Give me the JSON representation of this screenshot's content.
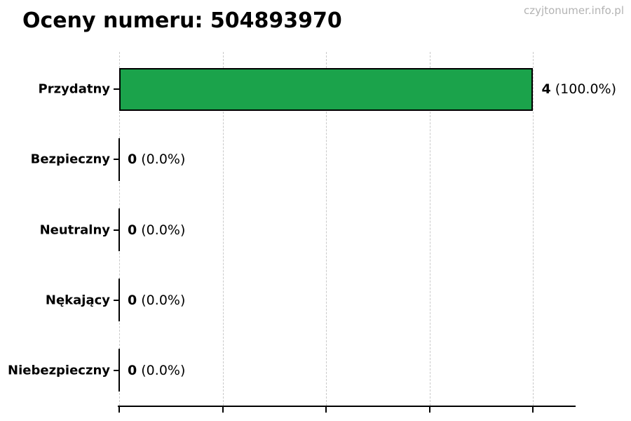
{
  "title": "Oceny numeru: 504893970",
  "watermark": "czyjtonumer.info.pl",
  "colors": {
    "background": "#ffffff",
    "text": "#000000",
    "bar_fill": "#1ba34b",
    "bar_edge": "#000000",
    "grid": "#c9c9c9",
    "axis": "#000000",
    "watermark": "#b3b3b3"
  },
  "chart_data": {
    "type": "bar",
    "orientation": "horizontal",
    "title": "Oceny numeru: 504893970",
    "categories": [
      "Przydatny",
      "Bezpieczny",
      "Neutralny",
      "Nękający",
      "Niebezpieczny"
    ],
    "values": [
      4,
      0,
      0,
      0,
      0
    ],
    "percentages": [
      100.0,
      0.0,
      0.0,
      0.0,
      0.0
    ],
    "value_labels": [
      {
        "num": "4",
        "pct": "(100.0%)"
      },
      {
        "num": "0",
        "pct": "(0.0%)"
      },
      {
        "num": "0",
        "pct": "(0.0%)"
      },
      {
        "num": "0",
        "pct": "(0.0%)"
      },
      {
        "num": "0",
        "pct": "(0.0%)"
      }
    ],
    "xlabel": "",
    "ylabel": "",
    "xlim": [
      0,
      4.41
    ],
    "x_ticks": [
      0,
      1,
      2,
      3,
      4
    ],
    "grid": "vertical-dashed",
    "legend": "none"
  }
}
